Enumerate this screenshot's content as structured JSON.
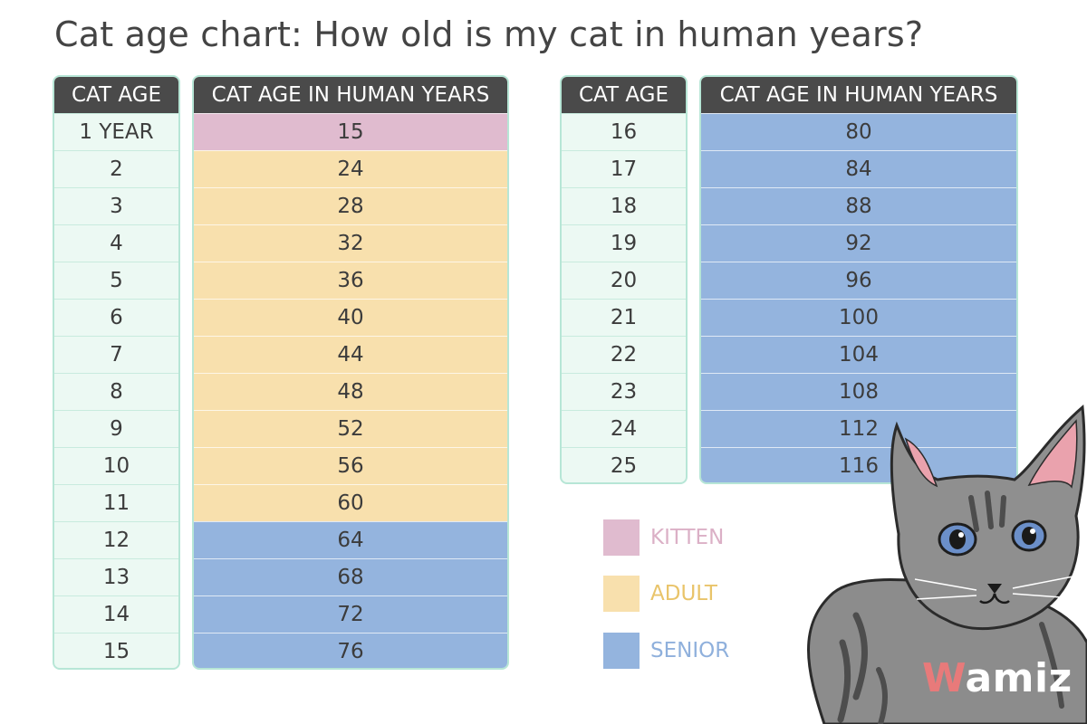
{
  "title": "Cat age chart: How old is my cat in human years?",
  "headers": {
    "cat_age": "CAT AGE",
    "human_years": "CAT AGE IN HUMAN YEARS"
  },
  "colors": {
    "kitten": "#e0bbcf",
    "adult": "#f8e0ad",
    "senior": "#94b4de",
    "header_bg": "#4a4a4a",
    "cat_age_bg": "#ecf9f3",
    "border": "#b7e6d6"
  },
  "legend": [
    {
      "key": "kitten",
      "label": "KITTEN",
      "color": "#e0bbcf",
      "text_color": "#dbb0c6"
    },
    {
      "key": "adult",
      "label": "ADULT",
      "color": "#f8e0ad",
      "text_color": "#e9c46a"
    },
    {
      "key": "senior",
      "label": "SENIOR",
      "color": "#94b4de",
      "text_color": "#8fb0dc"
    }
  ],
  "logo": {
    "first": "W",
    "rest": "amiz"
  },
  "chart_data": {
    "type": "table",
    "title": "Cat age chart: How old is my cat in human years?",
    "columns": [
      "CAT AGE",
      "CAT AGE IN HUMAN YEARS"
    ],
    "rows": [
      {
        "cat_age": "1 YEAR",
        "human_years": "15",
        "stage": "kitten"
      },
      {
        "cat_age": "2",
        "human_years": "24",
        "stage": "adult"
      },
      {
        "cat_age": "3",
        "human_years": "28",
        "stage": "adult"
      },
      {
        "cat_age": "4",
        "human_years": "32",
        "stage": "adult"
      },
      {
        "cat_age": "5",
        "human_years": "36",
        "stage": "adult"
      },
      {
        "cat_age": "6",
        "human_years": "40",
        "stage": "adult"
      },
      {
        "cat_age": "7",
        "human_years": "44",
        "stage": "adult"
      },
      {
        "cat_age": "8",
        "human_years": "48",
        "stage": "adult"
      },
      {
        "cat_age": "9",
        "human_years": "52",
        "stage": "adult"
      },
      {
        "cat_age": "10",
        "human_years": "56",
        "stage": "adult"
      },
      {
        "cat_age": "11",
        "human_years": "60",
        "stage": "adult"
      },
      {
        "cat_age": "12",
        "human_years": "64",
        "stage": "senior"
      },
      {
        "cat_age": "13",
        "human_years": "68",
        "stage": "senior"
      },
      {
        "cat_age": "14",
        "human_years": "72",
        "stage": "senior"
      },
      {
        "cat_age": "15",
        "human_years": "76",
        "stage": "senior"
      },
      {
        "cat_age": "16",
        "human_years": "80",
        "stage": "senior"
      },
      {
        "cat_age": "17",
        "human_years": "84",
        "stage": "senior"
      },
      {
        "cat_age": "18",
        "human_years": "88",
        "stage": "senior"
      },
      {
        "cat_age": "19",
        "human_years": "92",
        "stage": "senior"
      },
      {
        "cat_age": "20",
        "human_years": "96",
        "stage": "senior"
      },
      {
        "cat_age": "21",
        "human_years": "100",
        "stage": "senior"
      },
      {
        "cat_age": "22",
        "human_years": "104",
        "stage": "senior"
      },
      {
        "cat_age": "23",
        "human_years": "108",
        "stage": "senior"
      },
      {
        "cat_age": "24",
        "human_years": "112",
        "stage": "senior"
      },
      {
        "cat_age": "25",
        "human_years": "116",
        "stage": "senior"
      }
    ]
  }
}
